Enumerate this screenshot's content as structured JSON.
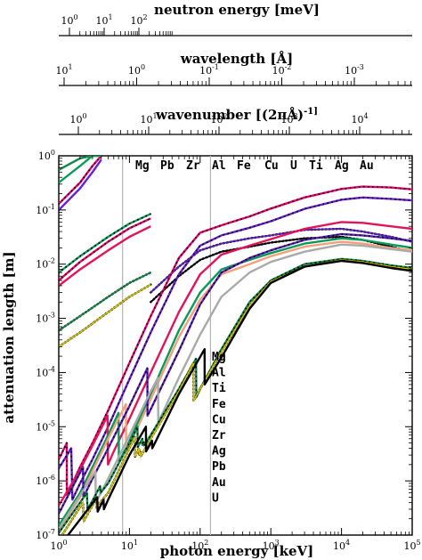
{
  "chart_data": {
    "type": "line",
    "xlabel": "photon energy [keV]",
    "ylabel": "attenuation length [m]",
    "x_scale": "log",
    "y_scale": "log",
    "xlim": [
      1,
      100000
    ],
    "ylim": [
      1e-07,
      1
    ],
    "x_tick_labels": [
      "10^0",
      "10^1",
      "10^2",
      "10^3",
      "10^4",
      "10^5"
    ],
    "y_tick_labels": [
      "10^0",
      "10^-1",
      "10^-2",
      "10^-3",
      "10^-4",
      "10^-5",
      "10^-6",
      "10^-7"
    ],
    "grid": false,
    "vertical_reference_lines_keV": [
      8,
      140
    ],
    "top_axes": [
      {
        "label": "neutron energy [meV]",
        "tick_labels": [
          "10^0",
          "10^1",
          "10^2"
        ]
      },
      {
        "label": "wavelength [Å]",
        "tick_labels": [
          "10^1",
          "10^0",
          "10^-1",
          "10^-2",
          "10^-3"
        ]
      },
      {
        "label": "wavenumber [(2πÅ)^-1]",
        "tick_labels": [
          "10^0",
          "10^1",
          "10^2",
          "10^3",
          "10^4"
        ]
      }
    ],
    "legend_top": [
      "Mg",
      "Pb",
      "Zr",
      "Al",
      "Fe",
      "Cu",
      "U",
      "Ti",
      "Ag",
      "Au"
    ],
    "legend_side": [
      "Mg",
      "Al",
      "Ti",
      "Fe",
      "Cu",
      "Zr",
      "Ag",
      "Pb",
      "Au",
      "U"
    ],
    "series": [
      {
        "name": "Mg",
        "color": "#e8006e",
        "style": "solid-dots",
        "x": [
          1,
          1.3,
          1.303,
          2,
          3,
          5,
          10,
          20,
          50,
          100,
          200,
          500,
          1000,
          3000,
          10000,
          20000,
          50000,
          100000
        ],
        "y": [
          2.5e-06,
          5e-06,
          5.5e-07,
          1.8e-06,
          5e-06,
          2e-05,
          0.00015,
          0.0011,
          0.013,
          0.038,
          0.052,
          0.076,
          0.106,
          0.17,
          0.245,
          0.27,
          0.26,
          0.24
        ]
      },
      {
        "name": "Al",
        "color": "#6a1fd1",
        "style": "solid-dots",
        "x": [
          1,
          1.5,
          1.56,
          2,
          3,
          5,
          10,
          20,
          50,
          100,
          200,
          500,
          1000,
          3000,
          10000,
          20000,
          50000,
          100000
        ],
        "y": [
          1.7e-06,
          4e-06,
          4.5e-07,
          9e-07,
          2.5e-06,
          1e-05,
          7.5e-05,
          0.00055,
          0.0065,
          0.022,
          0.034,
          0.047,
          0.062,
          0.105,
          0.155,
          0.17,
          0.16,
          0.15
        ]
      },
      {
        "name": "Ti",
        "color": "#e0155a",
        "style": "solid",
        "x": [
          1,
          2,
          3,
          4.9,
          4.97,
          6,
          10,
          20,
          50,
          100,
          200,
          500,
          1000,
          3000,
          10000,
          20000,
          50000,
          100000
        ],
        "y": [
          3.5e-07,
          1.6e-06,
          4.5e-06,
          1.6e-05,
          2e-06,
          3.5e-06,
          1.4e-05,
          0.0001,
          0.0013,
          0.0065,
          0.015,
          0.022,
          0.029,
          0.045,
          0.06,
          0.058,
          0.05,
          0.045
        ]
      },
      {
        "name": "Fe",
        "color": "#0a9a5a",
        "style": "solid",
        "x": [
          1,
          2,
          3,
          5,
          7.0,
          7.11,
          10,
          20,
          50,
          100,
          200,
          500,
          1000,
          3000,
          10000,
          20000,
          50000,
          100000
        ],
        "y": [
          1.5e-07,
          6e-07,
          1.8e-06,
          7e-06,
          1.8e-05,
          2.2e-06,
          5.5e-06,
          4e-05,
          0.0006,
          0.003,
          0.008,
          0.012,
          0.016,
          0.024,
          0.03,
          0.028,
          0.023,
          0.02
        ]
      },
      {
        "name": "Cu",
        "color": "#f4a07a",
        "style": "solid",
        "x": [
          1,
          2,
          3,
          5,
          8.9,
          8.98,
          10,
          20,
          50,
          100,
          200,
          500,
          1000,
          3000,
          10000,
          20000,
          50000,
          100000
        ],
        "y": [
          1.2e-07,
          5e-07,
          1.5e-06,
          6e-06,
          2.6e-05,
          3.5e-06,
          4.6e-06,
          3.2e-05,
          0.00045,
          0.0022,
          0.0065,
          0.01,
          0.014,
          0.021,
          0.026,
          0.024,
          0.02,
          0.018
        ]
      },
      {
        "name": "Zr",
        "color": "#5a1fb8",
        "style": "solid-dots",
        "x": [
          1,
          2.2,
          2.23,
          3,
          5,
          10,
          17.9,
          18.0,
          20,
          50,
          100,
          200,
          500,
          1000,
          3000,
          10000,
          20000,
          50000,
          100000
        ],
        "y": [
          2.5e-07,
          1.8e-06,
          5e-07,
          1.1e-06,
          4e-06,
          2.4e-05,
          0.00012,
          1.6e-05,
          2.1e-05,
          0.00025,
          0.0018,
          0.007,
          0.013,
          0.018,
          0.028,
          0.036,
          0.034,
          0.03,
          0.027
        ]
      },
      {
        "name": "Ag",
        "color": "#aaaaaa",
        "style": "solid",
        "x": [
          1,
          3.3,
          3.35,
          5,
          10,
          20,
          25.4,
          25.6,
          50,
          100,
          200,
          500,
          1000,
          3000,
          10000,
          20000,
          50000,
          100000
        ],
        "y": [
          1.3e-07,
          1.5e-06,
          4e-07,
          1.1e-06,
          7e-06,
          4.5e-05,
          8e-05,
          1.2e-05,
          8e-05,
          0.0005,
          0.0025,
          0.007,
          0.011,
          0.017,
          0.023,
          0.022,
          0.019,
          0.017
        ]
      },
      {
        "name": "Pb",
        "color": "#138a4a",
        "style": "solid-dots",
        "x": [
          1,
          2.5,
          2.55,
          3,
          3.85,
          3.9,
          5,
          10,
          13.0,
          13.1,
          15.2,
          15.25,
          16.0,
          16.1,
          20,
          50,
          87.5,
          88.2,
          100,
          200,
          500,
          1000,
          3000,
          10000,
          20000,
          50000,
          100000
        ],
        "y": [
          1.1e-07,
          6e-07,
          3e-07,
          4.3e-07,
          8e-07,
          6e-07,
          9e-07,
          5e-06,
          1e-05,
          4.2e-06,
          6e-06,
          4.6e-06,
          5.2e-06,
          4.5e-06,
          7e-06,
          5e-05,
          0.00018,
          3.5e-05,
          5e-05,
          0.00027,
          0.002,
          0.005,
          0.01,
          0.0125,
          0.0115,
          0.0095,
          0.0085
        ]
      },
      {
        "name": "Au",
        "color": "#d4c200",
        "style": "dotted",
        "x": [
          1,
          2.2,
          2.25,
          3,
          3.4,
          3.45,
          5,
          10,
          11.9,
          12.0,
          13.7,
          13.75,
          14.3,
          14.4,
          20,
          50,
          80.5,
          80.8,
          100,
          200,
          500,
          1000,
          3000,
          10000,
          20000,
          50000,
          100000
        ],
        "y": [
          8e-08,
          4e-07,
          1.8e-07,
          3.5e-07,
          5e-07,
          3.4e-07,
          6e-07,
          4e-06,
          6.5e-06,
          2.8e-06,
          4e-06,
          3e-06,
          3.4e-06,
          2.8e-06,
          6e-06,
          4.5e-05,
          0.00015,
          3e-05,
          5e-05,
          0.00024,
          0.0017,
          0.0048,
          0.009,
          0.012,
          0.011,
          0.009,
          0.008
        ]
      },
      {
        "name": "U",
        "color": "#000000",
        "style": "solid",
        "x": [
          1,
          3.5,
          3.55,
          4.3,
          4.35,
          5,
          10,
          17.1,
          17.2,
          20.9,
          21.0,
          22,
          50,
          115.5,
          116,
          200,
          500,
          1000,
          3000,
          10000,
          20000,
          50000,
          100000
        ],
        "y": [
          6e-08,
          5e-07,
          2.7e-07,
          4.5e-07,
          3e-07,
          4.5e-07,
          3e-06,
          1e-05,
          3.5e-06,
          5.5e-06,
          4e-06,
          4.5e-06,
          4e-05,
          0.00027,
          6e-05,
          0.00019,
          0.0015,
          0.0045,
          0.009,
          0.0115,
          0.0105,
          0.0085,
          0.0075
        ]
      }
    ],
    "upper_branch_series": [
      {
        "name": "Mg",
        "color": "#e8006e",
        "style": "solid-dots",
        "x": [
          1,
          2,
          3,
          4
        ],
        "y": [
          0.13,
          0.32,
          0.65,
          1
        ]
      },
      {
        "name": "Pb",
        "color": "#138a4a",
        "style": "solid",
        "x": [
          1,
          2,
          3,
          4
        ],
        "y": [
          0.55,
          0.9,
          1,
          1
        ]
      },
      {
        "name": "Al",
        "color": "#6a1fd1",
        "style": "solid",
        "x": [
          1,
          2,
          3,
          4
        ],
        "y": [
          0.1,
          0.25,
          0.5,
          0.85
        ]
      },
      {
        "name": "Fe",
        "color": "#0a9a5a",
        "style": "solid",
        "x": [
          1,
          2,
          3,
          4
        ],
        "y": [
          0.32,
          0.65,
          1,
          1
        ]
      },
      {
        "name": "Mg",
        "color": "#e8006e",
        "style": "solid-dots",
        "x": [
          1,
          2,
          5,
          10,
          20
        ],
        "y": [
          0.005,
          0.011,
          0.026,
          0.046,
          0.07
        ]
      },
      {
        "name": "Ti",
        "color": "#e0155a",
        "style": "solid",
        "x": [
          1,
          2,
          5,
          10,
          20
        ],
        "y": [
          0.004,
          0.008,
          0.018,
          0.032,
          0.05
        ]
      },
      {
        "name": "Fe",
        "color": "#0a9a5a",
        "style": "solid-dots",
        "x": [
          1,
          2,
          5,
          10,
          20
        ],
        "y": [
          0.007,
          0.014,
          0.032,
          0.056,
          0.085
        ]
      },
      {
        "name": "Pb",
        "color": "#138a4a",
        "style": "dotted",
        "x": [
          1,
          2,
          5,
          10,
          20
        ],
        "y": [
          0.0006,
          0.0011,
          0.0025,
          0.0045,
          0.007
        ]
      },
      {
        "name": "Au",
        "color": "#d4c200",
        "style": "dotted",
        "x": [
          1,
          2,
          5,
          10,
          20
        ],
        "y": [
          0.0003,
          0.00055,
          0.0013,
          0.0025,
          0.0042
        ]
      },
      {
        "name": "U",
        "color": "#000000",
        "style": "dotted",
        "x": [
          20,
          50,
          100,
          200,
          500,
          1000,
          3000,
          10000,
          20000,
          50000,
          100000
        ],
        "y": [
          0.002,
          0.006,
          0.012,
          0.017,
          0.021,
          0.025,
          0.03,
          0.032,
          0.028,
          0.021,
          0.017
        ]
      },
      {
        "name": "Zr",
        "color": "#5a1fb8",
        "style": "dotted",
        "x": [
          20,
          50,
          100,
          200,
          500,
          1000,
          3000,
          10000,
          20000,
          50000,
          100000
        ],
        "y": [
          0.003,
          0.009,
          0.018,
          0.024,
          0.03,
          0.034,
          0.043,
          0.045,
          0.04,
          0.032,
          0.026
        ]
      }
    ]
  }
}
